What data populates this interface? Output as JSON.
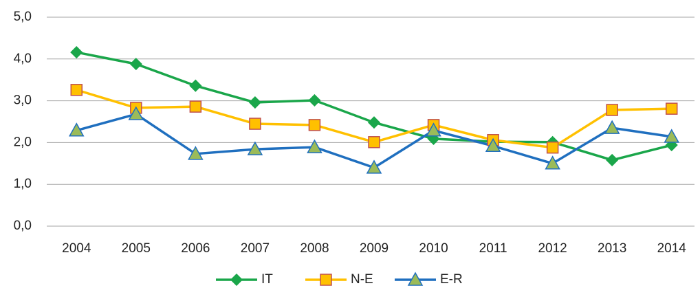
{
  "chart_data": {
    "type": "line",
    "categories": [
      "2004",
      "2005",
      "2006",
      "2007",
      "2008",
      "2009",
      "2010",
      "2011",
      "2012",
      "2013",
      "2014"
    ],
    "series": [
      {
        "name": "IT",
        "color": "#1aa64a",
        "marker": "diamond",
        "marker_fill": "#1aa64a",
        "marker_stroke": "#1aa64a",
        "values": [
          4.16,
          3.88,
          3.36,
          2.96,
          3.01,
          2.48,
          2.09,
          2.02,
          2.01,
          1.58,
          1.94
        ]
      },
      {
        "name": "N-E",
        "color": "#ffc000",
        "marker": "square",
        "marker_fill": "#ffc000",
        "marker_stroke": "#c0504d",
        "values": [
          3.26,
          2.83,
          2.86,
          2.45,
          2.42,
          2.01,
          2.42,
          2.06,
          1.88,
          2.78,
          2.81
        ]
      },
      {
        "name": "E-R",
        "color": "#1f6fbf",
        "marker": "triangle",
        "marker_fill": "#9bbb59",
        "marker_stroke": "#1f6fbf",
        "values": [
          2.29,
          2.68,
          1.73,
          1.84,
          1.89,
          1.4,
          2.29,
          1.92,
          1.5,
          2.35,
          2.14
        ]
      }
    ],
    "ylim": [
      0,
      5
    ],
    "yticks": [
      {
        "value": 0,
        "label": "0,0"
      },
      {
        "value": 1,
        "label": "1,0"
      },
      {
        "value": 2,
        "label": "2,0"
      },
      {
        "value": 3,
        "label": "3,0"
      },
      {
        "value": 4,
        "label": "4,0"
      },
      {
        "value": 5,
        "label": "5,0"
      }
    ],
    "grid": true,
    "legend": "bottom"
  }
}
